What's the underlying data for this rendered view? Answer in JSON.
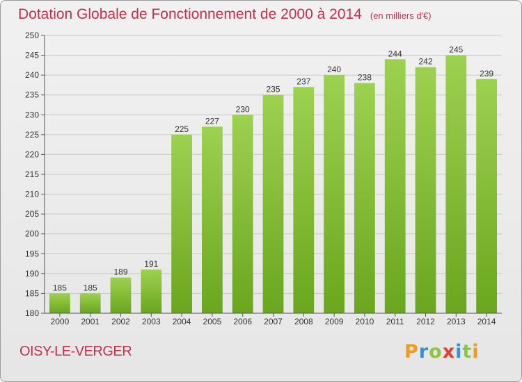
{
  "header": {
    "title": "Dotation Globale de Fonctionnement de 2000 à 2014",
    "unit": "(en milliers d'€)"
  },
  "footer": {
    "commune": "OISY-LE-VERGER",
    "logo": {
      "letters": [
        "P",
        "r",
        "o",
        "x",
        "i",
        "t",
        "i"
      ],
      "colors": [
        "#f39a1c",
        "#3a8fd6",
        "#8cc63f",
        "#e23c2c",
        "#3a8fd6",
        "#8cc63f",
        "#f39a1c"
      ]
    }
  },
  "colors": {
    "accent": "#c0304a",
    "bar_light": "#9dd150",
    "bar_dark": "#6aa61e",
    "grid": "#c8c8c8"
  },
  "chart_data": {
    "type": "bar",
    "categories": [
      "2000",
      "2001",
      "2002",
      "2003",
      "2004",
      "2005",
      "2006",
      "2007",
      "2008",
      "2009",
      "2010",
      "2011",
      "2012",
      "2013",
      "2014"
    ],
    "values": [
      185,
      185,
      189,
      191,
      225,
      227,
      230,
      235,
      237,
      240,
      238,
      244,
      242,
      245,
      239
    ],
    "ylim": [
      180,
      250
    ],
    "yticks": [
      180,
      185,
      190,
      195,
      200,
      205,
      210,
      215,
      220,
      225,
      230,
      235,
      240,
      245,
      250
    ],
    "grid": true,
    "data_labels": true
  }
}
